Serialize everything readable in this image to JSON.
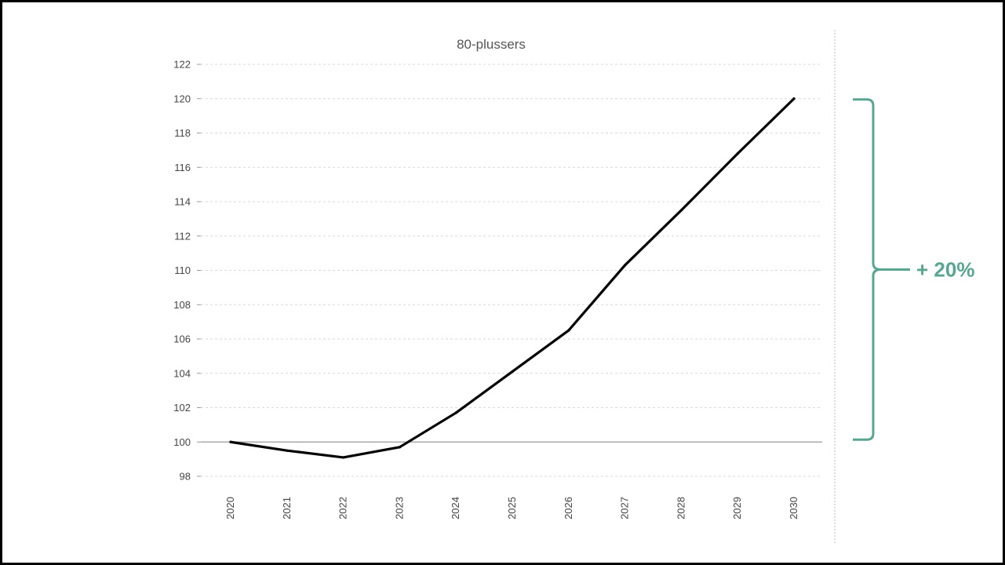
{
  "chart_data": {
    "type": "line",
    "title": "80-plussers",
    "xlabel": "",
    "ylabel": "",
    "categories": [
      "2020",
      "2021",
      "2022",
      "2023",
      "2024",
      "2025",
      "2026",
      "2027",
      "2028",
      "2029",
      "2030"
    ],
    "series": [
      {
        "values": [
          100,
          99.5,
          99.1,
          99.7,
          101.7,
          104.1,
          106.5,
          110.3,
          113.5,
          116.8,
          120
        ]
      }
    ],
    "ylim": [
      98,
      122
    ],
    "yticks": [
      98,
      100,
      102,
      104,
      106,
      108,
      110,
      112,
      114,
      116,
      118,
      120,
      122
    ],
    "baseline": 100,
    "grid": true,
    "legend": "none",
    "annotation": {
      "text": "+ 20%",
      "from": 100,
      "to": 120
    },
    "colors": {
      "line": "#000000",
      "annotation": "#5aa58f",
      "grid": "#d9d9d9",
      "baseline": "#999999"
    }
  }
}
